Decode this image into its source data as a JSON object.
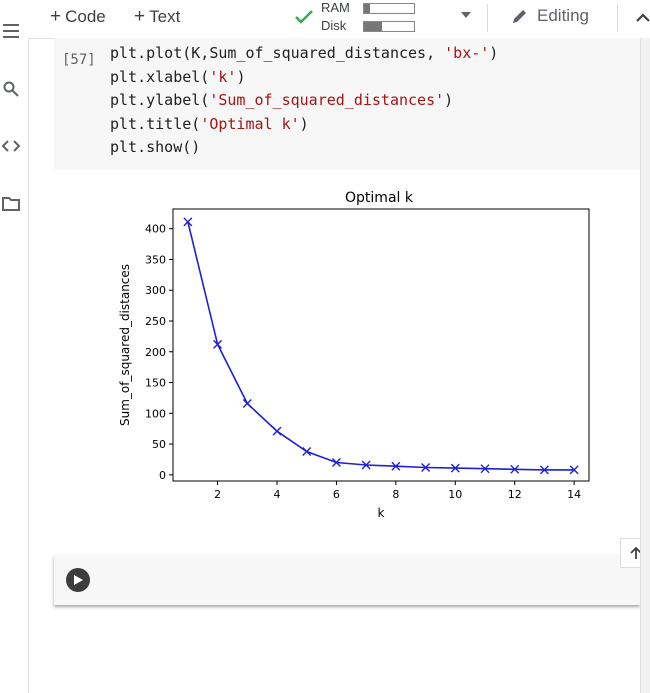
{
  "toolbar": {
    "add_code": "Code",
    "add_text": "Text",
    "ram_label": "RAM",
    "disk_label": "Disk",
    "ram_usage": 0.12,
    "disk_usage": 0.35,
    "editing_label": "Editing"
  },
  "cell": {
    "exec_count": "[57]",
    "lines": [
      {
        "plain": "plt.plot(K,Sum_of_squared_distances, ",
        "str": "'bx-'",
        "tail": ")"
      },
      {
        "plain": "plt.xlabel(",
        "str": "'k'",
        "tail": ")"
      },
      {
        "plain": "plt.ylabel(",
        "str": "'Sum_of_squared_distances'",
        "tail": ")"
      },
      {
        "plain": "plt.title(",
        "str": "'Optimal k'",
        "tail": ")"
      },
      {
        "plain": "plt.show()",
        "str": "",
        "tail": ""
      }
    ]
  },
  "chart_data": {
    "type": "line",
    "title": "Optimal k",
    "xlabel": "k",
    "ylabel": "Sum_of_squared_distances",
    "x": [
      1,
      2,
      3,
      4,
      5,
      6,
      7,
      8,
      9,
      10,
      11,
      12,
      13,
      14
    ],
    "values": [
      411,
      212,
      116,
      71,
      38,
      20,
      16,
      14,
      12,
      11,
      10,
      9,
      8,
      8
    ],
    "xticks": [
      2,
      4,
      6,
      8,
      10,
      12,
      14
    ],
    "yticks": [
      0,
      50,
      100,
      150,
      200,
      250,
      300,
      350,
      400
    ],
    "xlim": [
      0.5,
      14.5
    ],
    "ylim": [
      -10,
      432
    ],
    "marker": "x",
    "line_color": "#1f1fd6",
    "grid": false
  },
  "icons": {
    "menu": "menu-icon",
    "search": "search-icon",
    "code": "code-icon",
    "folder": "folder-icon",
    "check": "check-icon",
    "pencil": "pencil-icon",
    "collapse": "chevron-up-icon",
    "run": "run-cell-icon",
    "up": "arrow-up-icon"
  }
}
